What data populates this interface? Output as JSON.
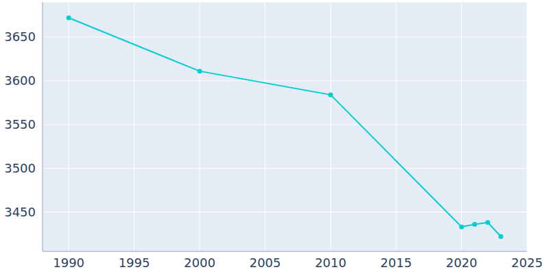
{
  "chart_data": {
    "type": "line",
    "x": [
      1990,
      2000,
      2010,
      2020,
      2021,
      2022,
      2023
    ],
    "values": [
      3672,
      3611,
      3584,
      3433,
      3436,
      3438,
      3422
    ],
    "color": "#00ced1",
    "marker": "circle",
    "xlim": [
      1988,
      2025
    ],
    "ylim": [
      3405,
      3690
    ],
    "xticks": [
      1990,
      1995,
      2000,
      2005,
      2010,
      2015,
      2020,
      2025
    ],
    "yticks": [
      3450,
      3500,
      3550,
      3600,
      3650
    ],
    "grid": true
  }
}
